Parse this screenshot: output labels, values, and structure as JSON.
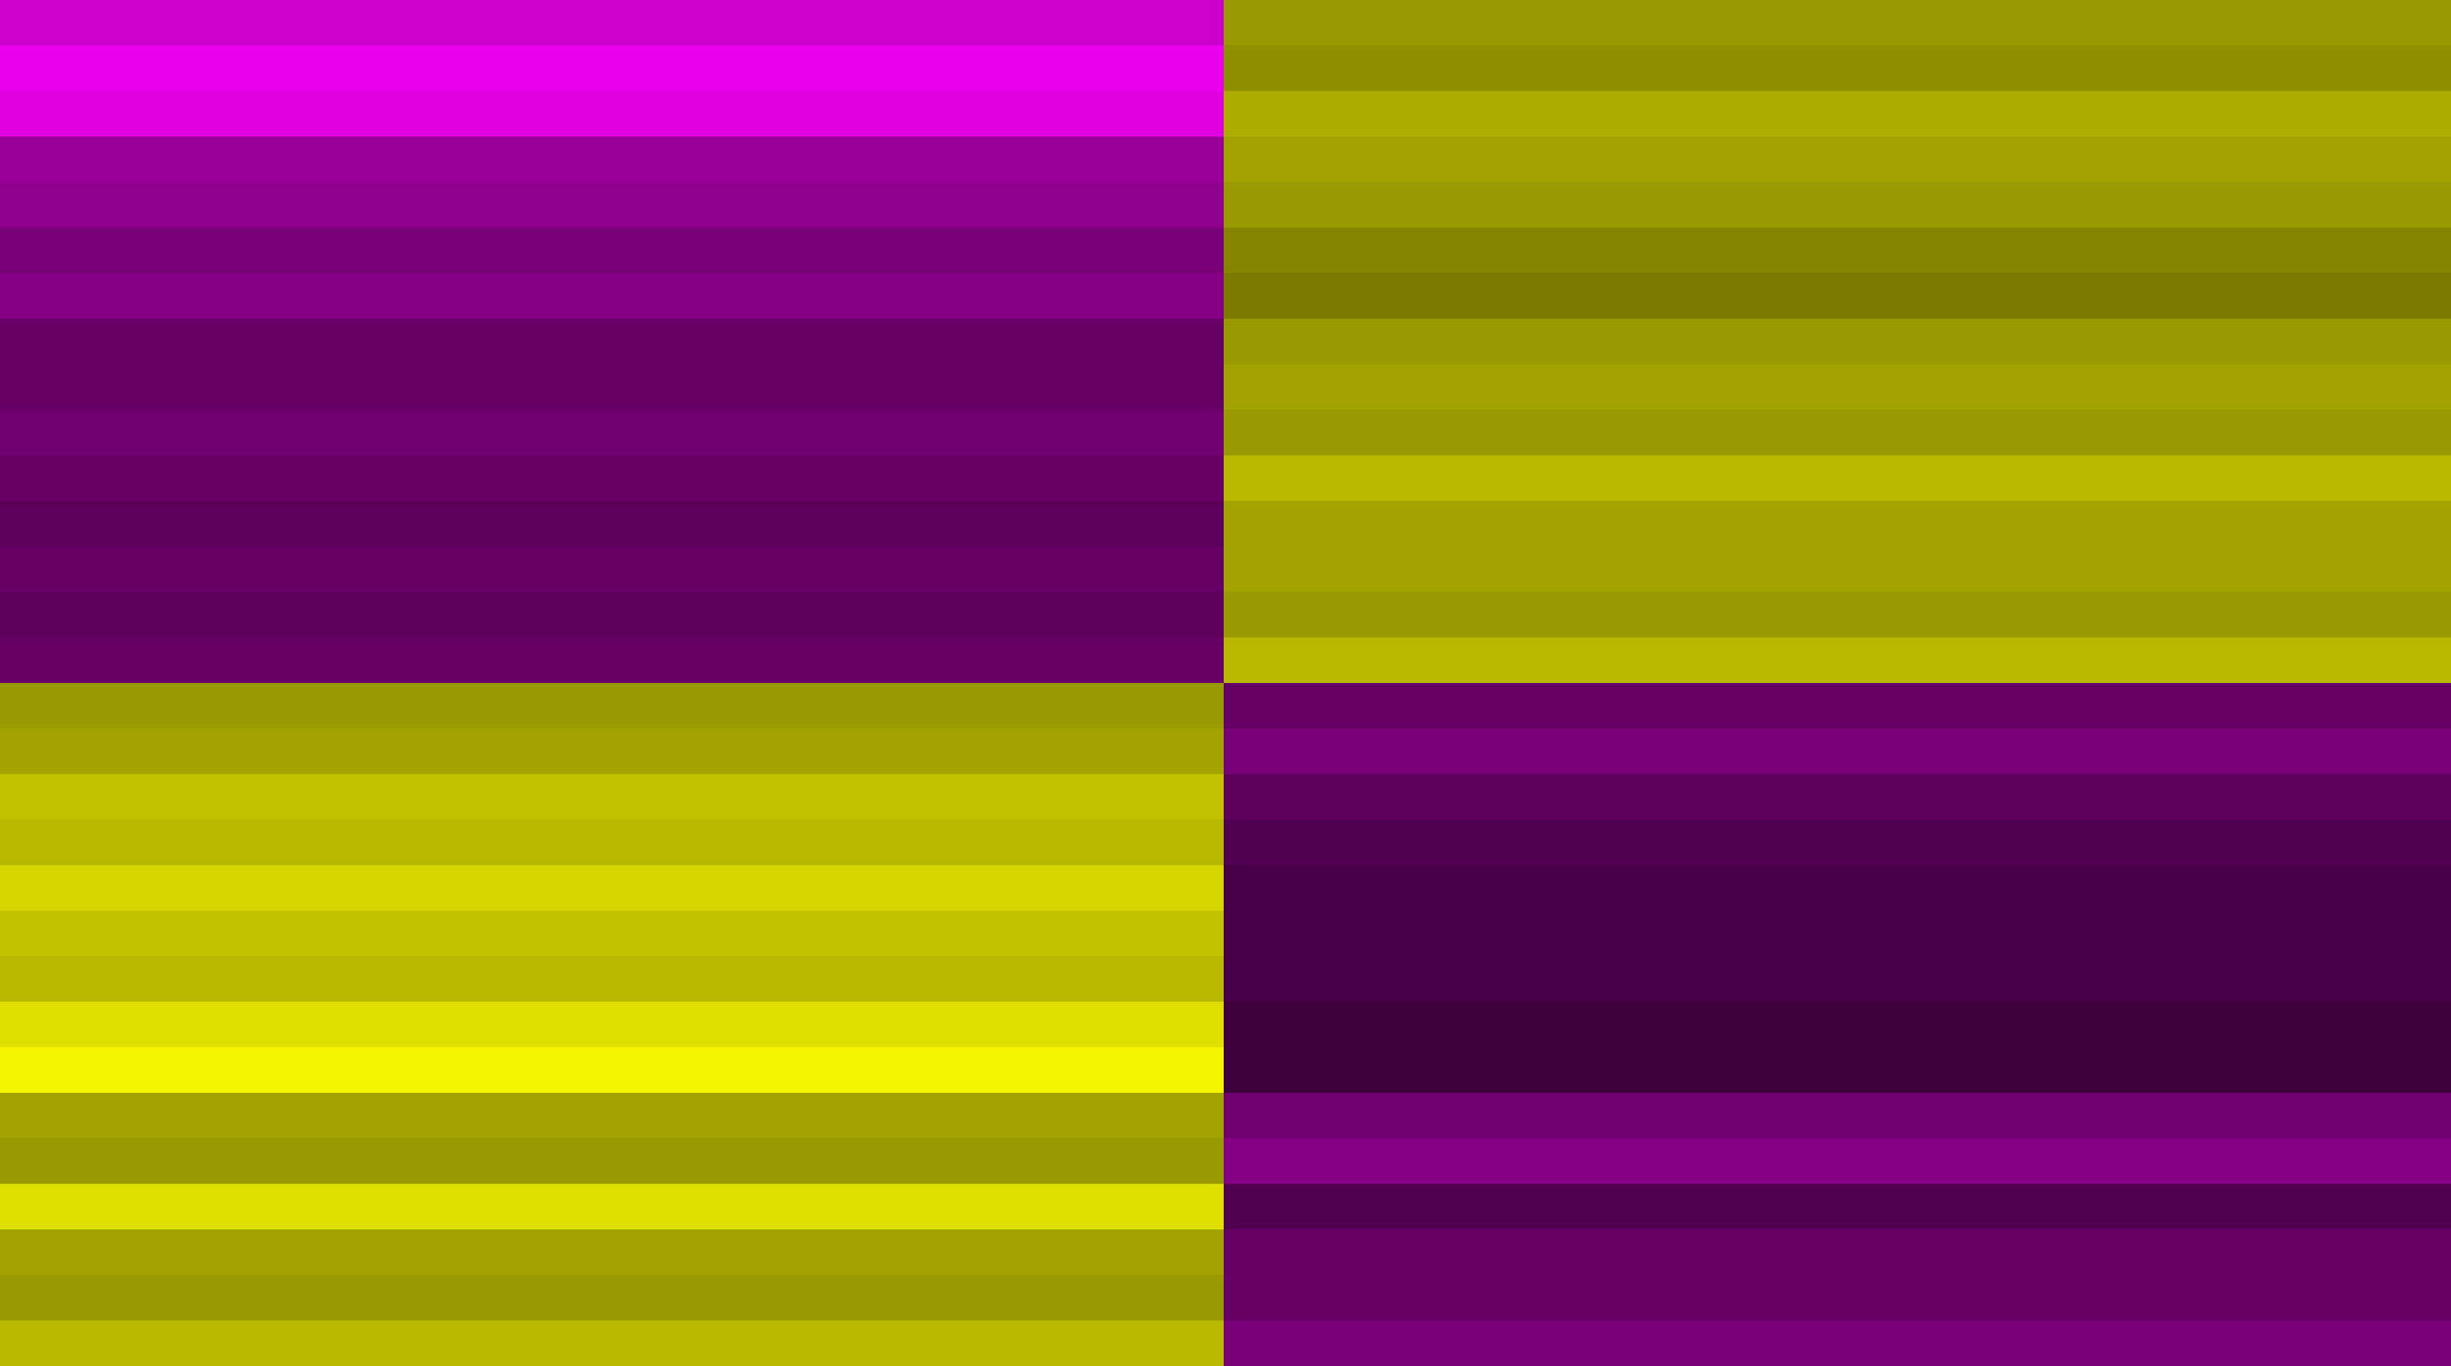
{
  "chart_data": {
    "type": "heatmap",
    "values": [
      [
        -2.0,
        1.5
      ],
      [
        -2.3,
        1.4
      ],
      [
        -2.2,
        1.7
      ],
      [
        -1.5,
        1.6
      ],
      [
        -1.4,
        1.5
      ],
      [
        -1.2,
        1.3
      ],
      [
        -1.3,
        1.2
      ],
      [
        -1.0,
        1.5
      ],
      [
        -1.0,
        1.6
      ],
      [
        -1.1,
        1.5
      ],
      [
        -1.0,
        1.8
      ],
      [
        -0.9,
        1.6
      ],
      [
        -1.0,
        1.6
      ],
      [
        -0.9,
        1.5
      ],
      [
        -1.0,
        1.8
      ],
      [
        1.5,
        -1.0
      ],
      [
        1.6,
        -1.2
      ],
      [
        1.9,
        -0.9
      ],
      [
        1.8,
        -0.8
      ],
      [
        2.1,
        -0.7
      ],
      [
        1.9,
        -0.7
      ],
      [
        1.8,
        -0.7
      ],
      [
        2.2,
        -0.6
      ],
      [
        2.4,
        -0.6
      ],
      [
        1.6,
        -1.1
      ],
      [
        1.5,
        -1.3
      ],
      [
        2.2,
        -0.8
      ],
      [
        1.6,
        -1.0
      ],
      [
        1.5,
        -1.0
      ],
      [
        1.8,
        -1.2
      ]
    ],
    "zlim": [
      -2.5,
      2.5
    ],
    "colors": [
      "#ff00ff",
      "#000000",
      "#ffff00"
    ]
  }
}
